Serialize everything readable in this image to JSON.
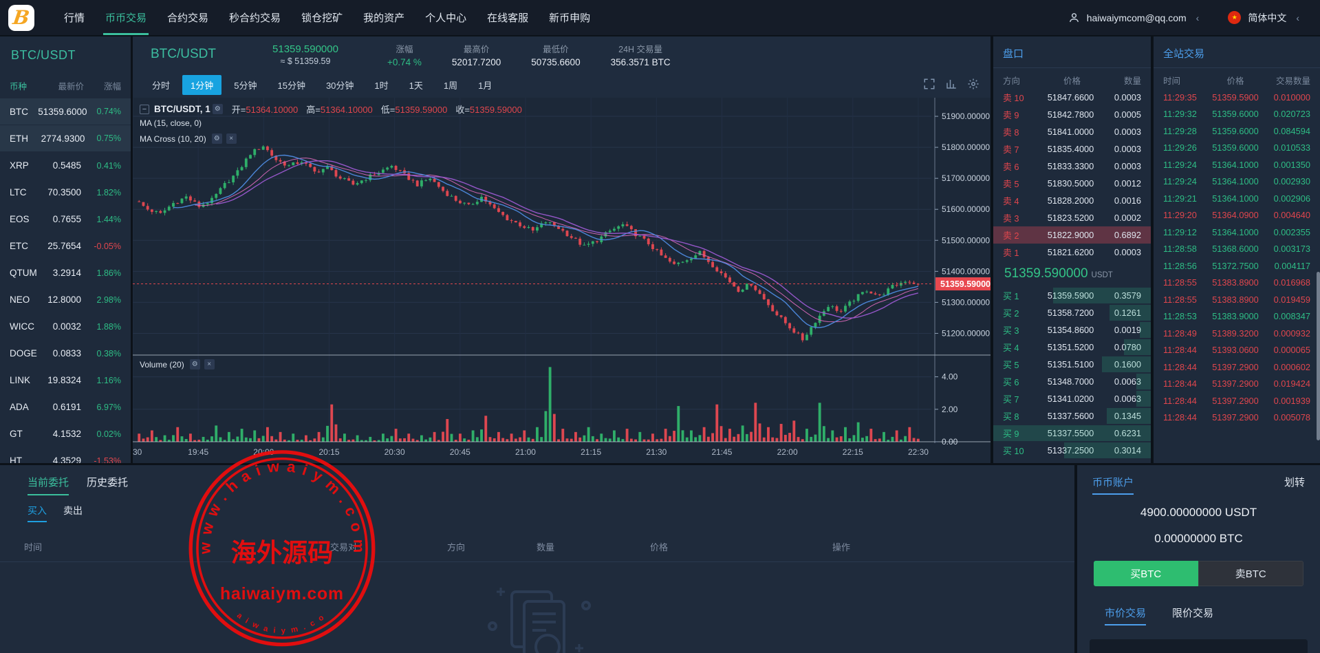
{
  "nav": {
    "logo_letter": "B",
    "items": [
      {
        "label": "行情",
        "active": false
      },
      {
        "label": "币币交易",
        "active": true
      },
      {
        "label": "合约交易",
        "active": false
      },
      {
        "label": "秒合约交易",
        "active": false
      },
      {
        "label": "锁仓挖矿",
        "active": false
      },
      {
        "label": "我的资产",
        "active": false
      },
      {
        "label": "个人中心",
        "active": false
      },
      {
        "label": "在线客服",
        "active": false
      },
      {
        "label": "新币申购",
        "active": false
      }
    ],
    "user_email": "haiwaiymcom@qq.com",
    "language": "简体中文",
    "chevron": "‹",
    "flag_star": "★"
  },
  "market_panel": {
    "title": "BTC/USDT",
    "headers": [
      "币种",
      "最新价",
      "涨幅"
    ],
    "rows": [
      {
        "symbol": "BTC",
        "price": "51359.6000",
        "change": "0.74%",
        "dir": "up",
        "selected": true
      },
      {
        "symbol": "ETH",
        "price": "2774.9300",
        "change": "0.75%",
        "dir": "up",
        "selected": true
      },
      {
        "symbol": "XRP",
        "price": "0.5485",
        "change": "0.41%",
        "dir": "up",
        "selected": false
      },
      {
        "symbol": "LTC",
        "price": "70.3500",
        "change": "1.82%",
        "dir": "up",
        "selected": false
      },
      {
        "symbol": "EOS",
        "price": "0.7655",
        "change": "1.44%",
        "dir": "up",
        "selected": false
      },
      {
        "symbol": "ETC",
        "price": "25.7654",
        "change": "-0.05%",
        "dir": "down",
        "selected": false
      },
      {
        "symbol": "QTUM",
        "price": "3.2914",
        "change": "1.86%",
        "dir": "up",
        "selected": false
      },
      {
        "symbol": "NEO",
        "price": "12.8000",
        "change": "2.98%",
        "dir": "up",
        "selected": false
      },
      {
        "symbol": "WICC",
        "price": "0.0032",
        "change": "1.88%",
        "dir": "up",
        "selected": false
      },
      {
        "symbol": "DOGE",
        "price": "0.0833",
        "change": "0.38%",
        "dir": "up",
        "selected": false
      },
      {
        "symbol": "LINK",
        "price": "19.8324",
        "change": "1.16%",
        "dir": "up",
        "selected": false
      },
      {
        "symbol": "ADA",
        "price": "0.6191",
        "change": "6.97%",
        "dir": "up",
        "selected": false
      },
      {
        "symbol": "GT",
        "price": "4.1532",
        "change": "0.02%",
        "dir": "up",
        "selected": false
      },
      {
        "symbol": "HT",
        "price": "4.3529",
        "change": "-1.53%",
        "dir": "down",
        "selected": false
      }
    ]
  },
  "chart": {
    "pair": "BTC/USDT",
    "price": "51359.590000",
    "approx": "≈ $ 51359.59",
    "stats": [
      {
        "label": "涨幅",
        "value": "+0.74 %",
        "up": true
      },
      {
        "label": "最高价",
        "value": "52017.7200",
        "up": false
      },
      {
        "label": "最低价",
        "value": "50735.6600",
        "up": false
      },
      {
        "label": "24H 交易量",
        "value": "356.3571 BTC",
        "up": false
      }
    ],
    "timeframes": [
      {
        "label": "分时",
        "active": false
      },
      {
        "label": "1分钟",
        "active": true
      },
      {
        "label": "5分钟",
        "active": false
      },
      {
        "label": "15分钟",
        "active": false
      },
      {
        "label": "30分钟",
        "active": false
      },
      {
        "label": "1时",
        "active": false
      },
      {
        "label": "1天",
        "active": false
      },
      {
        "label": "1周",
        "active": false
      },
      {
        "label": "1月",
        "active": false
      }
    ],
    "legend": {
      "collapse": "−",
      "title": "BTC/USDT, 1",
      "gear": "⚙",
      "close": "×",
      "o_label": "开=",
      "o": "51364.10000",
      "h_label": "高=",
      "h": "51364.10000",
      "l_label": "低=",
      "l": "51359.59000",
      "c_label": "收=",
      "c": "51359.59000",
      "ma1": "MA (15, close, 0)",
      "ma2": "MA Cross (10, 20)",
      "volume": "Volume (20)"
    }
  },
  "chart_data": {
    "type": "candlestick+volume",
    "x_labels": [
      "30",
      "19:45",
      "20:00",
      "20:15",
      "20:30",
      "20:45",
      "21:00",
      "21:15",
      "21:30",
      "21:45",
      "22:00",
      "22:15",
      "22:30"
    ],
    "y_ticks": [
      "51900.00000",
      "51800.00000",
      "51700.00000",
      "51600.00000",
      "51500.00000",
      "51400.00000",
      "51300.00000",
      "51200.00000"
    ],
    "vol_ticks": [
      "4.00",
      "2.00",
      "0.00"
    ],
    "y_range": [
      51130,
      51960
    ],
    "vol_max": 5,
    "current_price": 51359.59,
    "current_price_label": "51359.59000",
    "upsample": 3,
    "closes": [
      51630,
      51600,
      51585,
      51620,
      51640,
      51610,
      51630,
      51680,
      51720,
      51780,
      51805,
      51760,
      51740,
      51755,
      51720,
      51735,
      51700,
      51680,
      51700,
      51720,
      51740,
      51710,
      51680,
      51700,
      51660,
      51630,
      51610,
      51640,
      51600,
      51570,
      51550,
      51530,
      51560,
      51540,
      51510,
      51480,
      51500,
      51530,
      51550,
      51520,
      51490,
      51450,
      51420,
      51440,
      51460,
      51420,
      51380,
      51340,
      51360,
      51310,
      51260,
      51220,
      51180,
      51240,
      51290,
      51270,
      51310,
      51340,
      51320,
      51350,
      51370,
      51360
    ],
    "volumes": [
      0.5,
      0.7,
      0.4,
      0.9,
      0.5,
      0.3,
      1.0,
      0.6,
      0.8,
      0.7,
      0.9,
      0.6,
      0.5,
      0.4,
      0.6,
      2.3,
      0.5,
      0.4,
      0.3,
      0.5,
      0.8,
      0.5,
      0.4,
      0.6,
      1.4,
      0.5,
      0.7,
      1.6,
      0.6,
      0.5,
      0.7,
      0.9,
      4.6,
      0.8,
      0.6,
      0.9,
      0.5,
      0.7,
      0.8,
      0.6,
      0.5,
      0.8,
      2.2,
      0.7,
      0.9,
      2.3,
      0.8,
      1.0,
      2.4,
      0.9,
      1.1,
      1.3,
      0.8,
      2.4,
      0.7,
      0.9,
      1.2,
      0.8,
      0.6,
      0.7,
      0.9,
      0.5
    ]
  },
  "orderbook": {
    "title": "盘口",
    "headers": [
      "方向",
      "价格",
      "数量"
    ],
    "sells": [
      {
        "label": "卖 10",
        "price": "51847.6600",
        "amount": "0.0003",
        "hl": false
      },
      {
        "label": "卖 9",
        "price": "51842.7800",
        "amount": "0.0005",
        "hl": false
      },
      {
        "label": "卖 8",
        "price": "51841.0000",
        "amount": "0.0003",
        "hl": false
      },
      {
        "label": "卖 7",
        "price": "51835.4000",
        "amount": "0.0003",
        "hl": false
      },
      {
        "label": "卖 6",
        "price": "51833.3300",
        "amount": "0.0003",
        "hl": false
      },
      {
        "label": "卖 5",
        "price": "51830.5000",
        "amount": "0.0012",
        "hl": false
      },
      {
        "label": "卖 4",
        "price": "51828.2000",
        "amount": "0.0016",
        "hl": false
      },
      {
        "label": "卖 3",
        "price": "51823.5200",
        "amount": "0.0002",
        "hl": false
      },
      {
        "label": "卖 2",
        "price": "51822.9000",
        "amount": "0.6892",
        "hl": true
      },
      {
        "label": "卖 1",
        "price": "51821.6200",
        "amount": "0.0003",
        "hl": false
      }
    ],
    "current_price": "51359.590000",
    "current_unit": "USDT",
    "buys": [
      {
        "label": "买 1",
        "price": "51359.5900",
        "amount": "0.3579",
        "depth": 62
      },
      {
        "label": "买 2",
        "price": "51358.7200",
        "amount": "0.1261",
        "depth": 26
      },
      {
        "label": "买 3",
        "price": "51354.8600",
        "amount": "0.0019",
        "depth": 7
      },
      {
        "label": "买 4",
        "price": "51351.5200",
        "amount": "0.0780",
        "depth": 17
      },
      {
        "label": "买 5",
        "price": "51351.5100",
        "amount": "0.1600",
        "depth": 31
      },
      {
        "label": "买 6",
        "price": "51348.7000",
        "amount": "0.0063",
        "depth": 9
      },
      {
        "label": "买 7",
        "price": "51341.0200",
        "amount": "0.0063",
        "depth": 9
      },
      {
        "label": "买 8",
        "price": "51337.5600",
        "amount": "0.1345",
        "depth": 28
      },
      {
        "label": "买 9",
        "price": "51337.5500",
        "amount": "0.6231",
        "depth": 100
      },
      {
        "label": "买 10",
        "price": "51337.2500",
        "amount": "0.3014",
        "depth": 55
      }
    ]
  },
  "trades": {
    "title": "全站交易",
    "headers": [
      "时间",
      "价格",
      "交易数量"
    ],
    "rows": [
      {
        "time": "11:29:35",
        "price": "51359.5900",
        "amount": "0.010000",
        "side": "sell"
      },
      {
        "time": "11:29:32",
        "price": "51359.6000",
        "amount": "0.020723",
        "side": "buy"
      },
      {
        "time": "11:29:28",
        "price": "51359.6000",
        "amount": "0.084594",
        "side": "buy"
      },
      {
        "time": "11:29:26",
        "price": "51359.6000",
        "amount": "0.010533",
        "side": "buy"
      },
      {
        "time": "11:29:24",
        "price": "51364.1000",
        "amount": "0.001350",
        "side": "buy"
      },
      {
        "time": "11:29:24",
        "price": "51364.1000",
        "amount": "0.002930",
        "side": "buy"
      },
      {
        "time": "11:29:21",
        "price": "51364.1000",
        "amount": "0.002906",
        "side": "buy"
      },
      {
        "time": "11:29:20",
        "price": "51364.0900",
        "amount": "0.004640",
        "side": "sell"
      },
      {
        "time": "11:29:12",
        "price": "51364.1000",
        "amount": "0.002355",
        "side": "buy"
      },
      {
        "time": "11:28:58",
        "price": "51368.6000",
        "amount": "0.003173",
        "side": "buy"
      },
      {
        "time": "11:28:56",
        "price": "51372.7500",
        "amount": "0.004117",
        "side": "buy"
      },
      {
        "time": "11:28:55",
        "price": "51383.8900",
        "amount": "0.016968",
        "side": "sell"
      },
      {
        "time": "11:28:55",
        "price": "51383.8900",
        "amount": "0.019459",
        "side": "sell"
      },
      {
        "time": "11:28:53",
        "price": "51383.9000",
        "amount": "0.008347",
        "side": "buy"
      },
      {
        "time": "11:28:49",
        "price": "51389.3200",
        "amount": "0.000932",
        "side": "sell"
      },
      {
        "time": "11:28:44",
        "price": "51393.0600",
        "amount": "0.000065",
        "side": "sell"
      },
      {
        "time": "11:28:44",
        "price": "51397.2900",
        "amount": "0.000602",
        "side": "sell"
      },
      {
        "time": "11:28:44",
        "price": "51397.2900",
        "amount": "0.019424",
        "side": "sell"
      },
      {
        "time": "11:28:44",
        "price": "51397.2900",
        "amount": "0.001939",
        "side": "sell"
      },
      {
        "time": "11:28:44",
        "price": "51397.2900",
        "amount": "0.005078",
        "side": "sell"
      }
    ]
  },
  "orders_panel": {
    "tabs": [
      {
        "label": "当前委托",
        "active": true
      },
      {
        "label": "历史委托",
        "active": false
      }
    ],
    "side_tabs": [
      {
        "label": "买入",
        "active": true
      },
      {
        "label": "卖出",
        "active": false
      }
    ],
    "headers": [
      "时间",
      "交易对",
      "方向",
      "数量",
      "价格",
      "操作"
    ]
  },
  "account_panel": {
    "title": "币币账户",
    "transfer": "划转",
    "usdt_balance": "4900.00000000 USDT",
    "btc_balance": "0.00000000 BTC",
    "buy_button": "买BTC",
    "sell_button": "卖BTC",
    "tabs": [
      {
        "label": "市价交易",
        "active": true
      },
      {
        "label": "限价交易",
        "active": false
      }
    ]
  },
  "watermark": {
    "arc_text": "w w w . h a i w a i y m . c o m",
    "center_text": "海外源码",
    "domain_text": "haiwaiym.com",
    "bottom_arc_text": "h a i w a i y m . c o m",
    "color": "#f20c0c"
  },
  "colors": {
    "up_green": "#2ebd85",
    "down_red": "#e0464d",
    "accent_teal": "#3bbf9d",
    "accent_blue": "#4d9fec",
    "tf_active_blue": "#18a3e0",
    "price_tag_red": "#e8484f"
  }
}
